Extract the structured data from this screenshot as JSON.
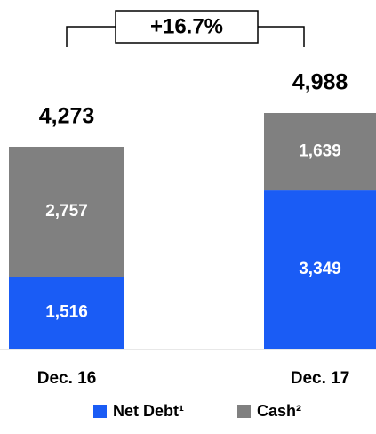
{
  "chart_data": {
    "type": "stacked_bar",
    "annotation": "+16.7%",
    "categories": [
      "Dec. 16",
      "Dec. 17"
    ],
    "series": [
      {
        "name": "Net Debt¹",
        "color": "#1a5cf5",
        "values": [
          1516,
          3349
        ],
        "value_labels": [
          "1,516",
          "3,349"
        ]
      },
      {
        "name": "Cash²",
        "color": "#808080",
        "values": [
          2757,
          1639
        ],
        "value_labels": [
          "2,757",
          "1,639"
        ]
      }
    ],
    "totals": [
      4273,
      4988
    ],
    "total_labels": [
      "4,273",
      "4,988"
    ]
  }
}
